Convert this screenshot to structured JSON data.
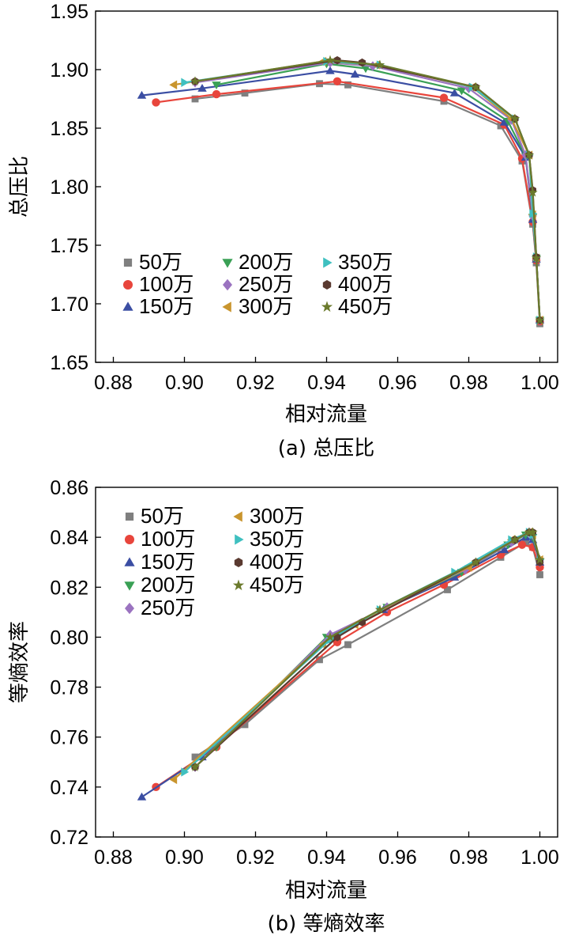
{
  "chart_data": [
    {
      "type": "line",
      "caption": "(a) 总压比",
      "xlabel": "相对流量",
      "ylabel": "总压比",
      "xlim": [
        0.875,
        1.005
      ],
      "ylim": [
        1.65,
        1.95
      ],
      "xticks": [
        "0.88",
        "0.90",
        "0.92",
        "0.94",
        "0.96",
        "0.98",
        "1.00"
      ],
      "yticks": [
        "1.65",
        "1.70",
        "1.75",
        "1.80",
        "1.85",
        "1.90",
        "1.95"
      ],
      "grid": false,
      "legend_position": "bottom-left",
      "legend_columns": 3,
      "series": [
        {
          "name": "50万",
          "color": "#7f7f7f",
          "marker": "square",
          "x": [
            0.903,
            0.917,
            0.938,
            0.946,
            0.973,
            0.989,
            0.995,
            0.998,
            0.999,
            1.0
          ],
          "y": [
            1.875,
            1.88,
            1.888,
            1.887,
            1.873,
            1.852,
            1.822,
            1.768,
            1.735,
            1.683
          ]
        },
        {
          "name": "100万",
          "color": "#e8453c",
          "marker": "circle",
          "x": [
            0.892,
            0.909,
            0.943,
            0.973,
            0.99,
            0.995,
            0.998,
            0.999,
            1.0
          ],
          "y": [
            1.872,
            1.879,
            1.89,
            1.876,
            1.853,
            1.824,
            1.77,
            1.737,
            1.685
          ]
        },
        {
          "name": "150万",
          "color": "#3b4ea3",
          "marker": "triangle-up",
          "x": [
            0.888,
            0.905,
            0.941,
            0.948,
            0.976,
            0.99,
            0.996,
            0.998,
            0.999,
            1.0
          ],
          "y": [
            1.878,
            1.884,
            1.899,
            1.896,
            1.88,
            1.855,
            1.825,
            1.772,
            1.738,
            1.686
          ]
        },
        {
          "name": "200万",
          "color": "#3aa055",
          "marker": "triangle-down",
          "x": [
            0.909,
            0.94,
            0.951,
            0.978,
            0.991,
            0.996,
            0.998,
            0.999,
            1.0
          ],
          "y": [
            1.887,
            1.905,
            1.901,
            1.882,
            1.856,
            1.826,
            1.774,
            1.739,
            1.686
          ]
        },
        {
          "name": "250万",
          "color": "#9b73c0",
          "marker": "diamond",
          "x": [
            0.903,
            0.941,
            0.953,
            0.98,
            0.992,
            0.996,
            0.998,
            0.999,
            1.0
          ],
          "y": [
            1.889,
            1.906,
            1.903,
            1.884,
            1.857,
            1.827,
            1.775,
            1.739,
            1.686
          ]
        },
        {
          "name": "300万",
          "color": "#c9952e",
          "marker": "triangle-left",
          "x": [
            0.897,
            0.939,
            0.954,
            0.981,
            0.992,
            0.997,
            0.998,
            0.999,
            1.0
          ],
          "y": [
            1.887,
            1.907,
            1.904,
            1.885,
            1.858,
            1.827,
            1.776,
            1.739,
            1.686
          ]
        },
        {
          "name": "350万",
          "color": "#3fc0c0",
          "marker": "triangle-right",
          "x": [
            0.9,
            0.94,
            0.955,
            0.981,
            0.993,
            0.997,
            0.998,
            0.999,
            1.0
          ],
          "y": [
            1.889,
            1.907,
            1.904,
            1.885,
            1.858,
            1.827,
            1.777,
            1.74,
            1.686
          ]
        },
        {
          "name": "400万",
          "color": "#5a3a30",
          "marker": "hexagon",
          "x": [
            0.903,
            0.943,
            0.95,
            0.982,
            0.993,
            0.997,
            0.998,
            0.999,
            1.0
          ],
          "y": [
            1.89,
            1.908,
            1.906,
            1.885,
            1.858,
            1.827,
            1.797,
            1.74,
            1.686
          ]
        },
        {
          "name": "450万",
          "color": "#6b7a2c",
          "marker": "star",
          "x": [
            0.903,
            0.941,
            0.955,
            0.982,
            0.993,
            0.997,
            0.998,
            0.999,
            1.0
          ],
          "y": [
            1.89,
            1.908,
            1.904,
            1.885,
            1.858,
            1.827,
            1.795,
            1.739,
            1.686
          ]
        }
      ]
    },
    {
      "type": "line",
      "caption": "(b) 等熵效率",
      "xlabel": "相对流量",
      "ylabel": "等熵效率",
      "xlim": [
        0.875,
        1.005
      ],
      "ylim": [
        0.72,
        0.86
      ],
      "xticks": [
        "0.88",
        "0.90",
        "0.92",
        "0.94",
        "0.96",
        "0.98",
        "1.00"
      ],
      "yticks": [
        "0.72",
        "0.74",
        "0.76",
        "0.78",
        "0.80",
        "0.82",
        "0.84",
        "0.86"
      ],
      "grid": false,
      "legend_position": "top-left",
      "legend_columns": 2,
      "series": [
        {
          "name": "50万",
          "color": "#7f7f7f",
          "marker": "square",
          "x": [
            0.903,
            0.917,
            0.938,
            0.946,
            0.974,
            0.989,
            0.996,
            0.998,
            1.0
          ],
          "y": [
            0.752,
            0.765,
            0.791,
            0.797,
            0.819,
            0.832,
            0.838,
            0.836,
            0.825
          ]
        },
        {
          "name": "100万",
          "color": "#e8453c",
          "marker": "circle",
          "x": [
            0.892,
            0.909,
            0.943,
            0.957,
            0.973,
            0.989,
            0.995,
            0.998,
            1.0
          ],
          "y": [
            0.74,
            0.756,
            0.798,
            0.81,
            0.821,
            0.833,
            0.837,
            0.836,
            0.828
          ]
        },
        {
          "name": "150万",
          "color": "#3b4ea3",
          "marker": "triangle-up",
          "x": [
            0.888,
            0.905,
            0.94,
            0.956,
            0.976,
            0.99,
            0.996,
            0.998,
            1.0
          ],
          "y": [
            0.736,
            0.752,
            0.799,
            0.811,
            0.824,
            0.835,
            0.84,
            0.839,
            0.83
          ]
        },
        {
          "name": "200万",
          "color": "#3aa055",
          "marker": "triangle-down",
          "x": [
            0.909,
            0.94,
            0.957,
            0.978,
            0.991,
            0.996,
            0.998,
            1.0
          ],
          "y": [
            0.756,
            0.8,
            0.812,
            0.826,
            0.837,
            0.841,
            0.84,
            0.83
          ]
        },
        {
          "name": "250万",
          "color": "#9b73c0",
          "marker": "diamond",
          "x": [
            0.903,
            0.941,
            0.957,
            0.979,
            0.992,
            0.997,
            0.998,
            1.0
          ],
          "y": [
            0.748,
            0.801,
            0.812,
            0.827,
            0.838,
            0.842,
            0.841,
            0.83
          ]
        },
        {
          "name": "300万",
          "color": "#c9952e",
          "marker": "triangle-left",
          "x": [
            0.897,
            0.939,
            0.948,
            0.98,
            0.992,
            0.997,
            0.998,
            1.0
          ],
          "y": [
            0.743,
            0.797,
            0.805,
            0.828,
            0.839,
            0.842,
            0.841,
            0.831
          ]
        },
        {
          "name": "350万",
          "color": "#3fc0c0",
          "marker": "triangle-right",
          "x": [
            0.9,
            0.941,
            0.955,
            0.976,
            0.992,
            0.997,
            0.998,
            1.0
          ],
          "y": [
            0.746,
            0.799,
            0.811,
            0.826,
            0.839,
            0.842,
            0.841,
            0.831
          ]
        },
        {
          "name": "400万",
          "color": "#5a3a30",
          "marker": "hexagon",
          "x": [
            0.903,
            0.943,
            0.95,
            0.982,
            0.993,
            0.997,
            0.998,
            1.0
          ],
          "y": [
            0.748,
            0.8,
            0.806,
            0.83,
            0.839,
            0.842,
            0.842,
            0.83
          ]
        },
        {
          "name": "450万",
          "color": "#6b7a2c",
          "marker": "star",
          "x": [
            0.903,
            0.941,
            0.955,
            0.982,
            0.993,
            0.997,
            0.998,
            1.0
          ],
          "y": [
            0.748,
            0.8,
            0.811,
            0.83,
            0.839,
            0.842,
            0.842,
            0.831
          ]
        }
      ]
    }
  ]
}
